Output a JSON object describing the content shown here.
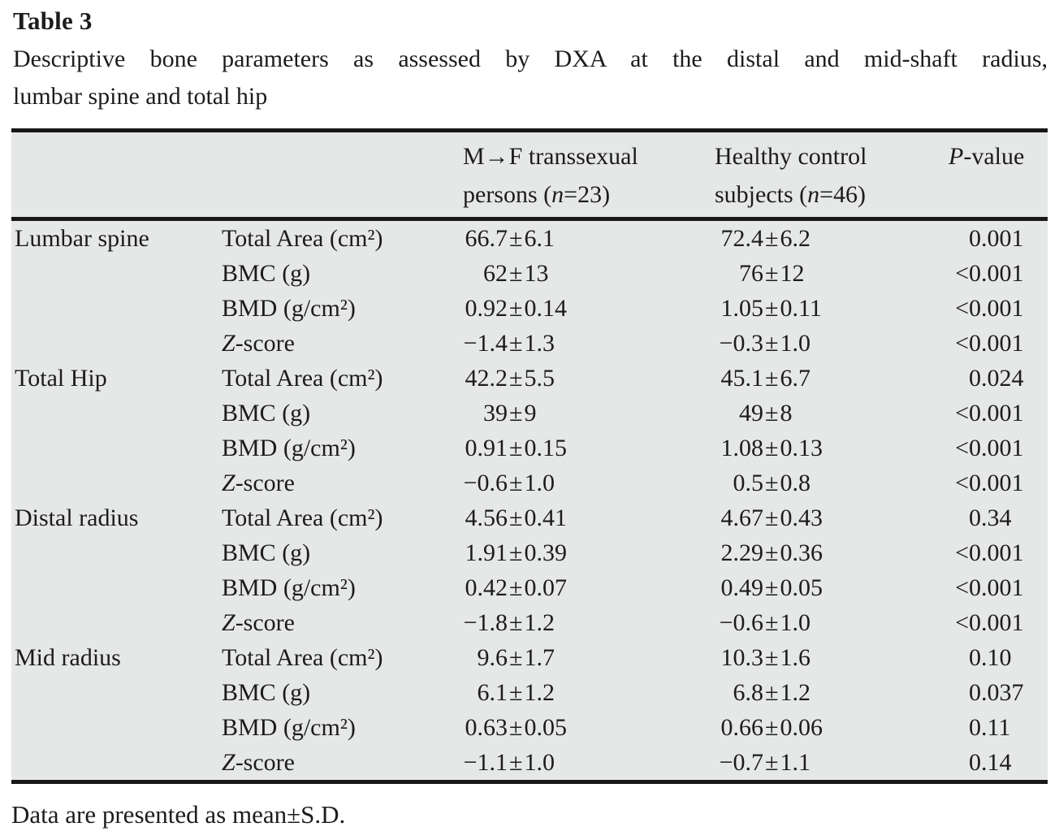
{
  "title": "Table 3",
  "caption": {
    "line1": "Descriptive bone parameters as assessed by DXA at the distal and mid-shaft radius,",
    "line2": "lumbar spine and total hip"
  },
  "symbols": {
    "pm": "±"
  },
  "colors": {
    "table_background": "#e6e7e7",
    "rule": "#181818",
    "text": "#1c1c1c"
  },
  "header": {
    "m2f": {
      "line1": "M→F transsexual",
      "line2_pre": "persons (",
      "line2_it": "n",
      "line2_post": "=23)"
    },
    "control": {
      "line1": "Healthy control",
      "line2_pre": "subjects (",
      "line2_it": "n",
      "line2_post": "=46)"
    },
    "p": {
      "it": "P",
      "post": "-value"
    }
  },
  "rows": [
    {
      "region": "Lumbar spine",
      "param": {
        "pre": "Total Area (cm²)",
        "it": "",
        "post": ""
      },
      "m2f": {
        "mean": "66.7",
        "sd": "6.1"
      },
      "ctl": {
        "mean": "72.4",
        "sd": "6.2"
      },
      "p": {
        "prefix": "",
        "value": "0.001"
      }
    },
    {
      "region": "",
      "param": {
        "pre": "BMC (g)",
        "it": "",
        "post": ""
      },
      "m2f": {
        "mean": "62",
        "sd": "13"
      },
      "ctl": {
        "mean": "76",
        "sd": "12"
      },
      "p": {
        "prefix": "<",
        "value": "0.001"
      }
    },
    {
      "region": "",
      "param": {
        "pre": "BMD (g/cm²)",
        "it": "",
        "post": ""
      },
      "m2f": {
        "mean": "0.92",
        "sd": "0.14"
      },
      "ctl": {
        "mean": "1.05",
        "sd": "0.11"
      },
      "p": {
        "prefix": "<",
        "value": "0.001"
      }
    },
    {
      "region": "",
      "param": {
        "pre": "",
        "it": "Z",
        "post": "-score"
      },
      "m2f": {
        "mean": "−1.4",
        "sd": "1.3"
      },
      "ctl": {
        "mean": "−0.3",
        "sd": "1.0"
      },
      "p": {
        "prefix": "<",
        "value": "0.001"
      }
    },
    {
      "region": "Total Hip",
      "param": {
        "pre": "Total Area (cm²)",
        "it": "",
        "post": ""
      },
      "m2f": {
        "mean": "42.2",
        "sd": "5.5"
      },
      "ctl": {
        "mean": "45.1",
        "sd": "6.7"
      },
      "p": {
        "prefix": "",
        "value": "0.024"
      }
    },
    {
      "region": "",
      "param": {
        "pre": "BMC (g)",
        "it": "",
        "post": ""
      },
      "m2f": {
        "mean": "39",
        "sd": "9"
      },
      "ctl": {
        "mean": "49",
        "sd": "8"
      },
      "p": {
        "prefix": "<",
        "value": "0.001"
      }
    },
    {
      "region": "",
      "param": {
        "pre": "BMD (g/cm²)",
        "it": "",
        "post": ""
      },
      "m2f": {
        "mean": "0.91",
        "sd": "0.15"
      },
      "ctl": {
        "mean": "1.08",
        "sd": "0.13"
      },
      "p": {
        "prefix": "<",
        "value": "0.001"
      }
    },
    {
      "region": "",
      "param": {
        "pre": "",
        "it": "Z",
        "post": "-score"
      },
      "m2f": {
        "mean": "−0.6",
        "sd": "1.0"
      },
      "ctl": {
        "mean": "0.5",
        "sd": "0.8"
      },
      "p": {
        "prefix": "<",
        "value": "0.001"
      }
    },
    {
      "region": "Distal radius",
      "param": {
        "pre": "Total Area (cm²)",
        "it": "",
        "post": ""
      },
      "m2f": {
        "mean": "4.56",
        "sd": "0.41"
      },
      "ctl": {
        "mean": "4.67",
        "sd": "0.43"
      },
      "p": {
        "prefix": "",
        "value": "0.34"
      }
    },
    {
      "region": "",
      "param": {
        "pre": "BMC (g)",
        "it": "",
        "post": ""
      },
      "m2f": {
        "mean": "1.91",
        "sd": "0.39"
      },
      "ctl": {
        "mean": "2.29",
        "sd": "0.36"
      },
      "p": {
        "prefix": "<",
        "value": "0.001"
      }
    },
    {
      "region": "",
      "param": {
        "pre": "BMD (g/cm²)",
        "it": "",
        "post": ""
      },
      "m2f": {
        "mean": "0.42",
        "sd": "0.07"
      },
      "ctl": {
        "mean": "0.49",
        "sd": "0.05"
      },
      "p": {
        "prefix": "<",
        "value": "0.001"
      }
    },
    {
      "region": "",
      "param": {
        "pre": "",
        "it": "Z",
        "post": "-score"
      },
      "m2f": {
        "mean": "−1.8",
        "sd": "1.2"
      },
      "ctl": {
        "mean": "−0.6",
        "sd": "1.0"
      },
      "p": {
        "prefix": "<",
        "value": "0.001"
      }
    },
    {
      "region": "Mid radius",
      "param": {
        "pre": "Total Area (cm²)",
        "it": "",
        "post": ""
      },
      "m2f": {
        "mean": "9.6",
        "sd": "1.7"
      },
      "ctl": {
        "mean": "10.3",
        "sd": "1.6"
      },
      "p": {
        "prefix": "",
        "value": "0.10"
      }
    },
    {
      "region": "",
      "param": {
        "pre": "BMC (g)",
        "it": "",
        "post": ""
      },
      "m2f": {
        "mean": "6.1",
        "sd": "1.2"
      },
      "ctl": {
        "mean": "6.8",
        "sd": "1.2"
      },
      "p": {
        "prefix": "",
        "value": "0.037"
      }
    },
    {
      "region": "",
      "param": {
        "pre": "BMD (g/cm²)",
        "it": "",
        "post": ""
      },
      "m2f": {
        "mean": "0.63",
        "sd": "0.05"
      },
      "ctl": {
        "mean": "0.66",
        "sd": "0.06"
      },
      "p": {
        "prefix": "",
        "value": "0.11"
      }
    },
    {
      "region": "",
      "param": {
        "pre": "",
        "it": "Z",
        "post": "-score"
      },
      "m2f": {
        "mean": "−1.1",
        "sd": "1.0"
      },
      "ctl": {
        "mean": "−0.7",
        "sd": "1.1"
      },
      "p": {
        "prefix": "",
        "value": "0.14"
      }
    }
  ],
  "footnote": "Data are presented as mean±S.D."
}
